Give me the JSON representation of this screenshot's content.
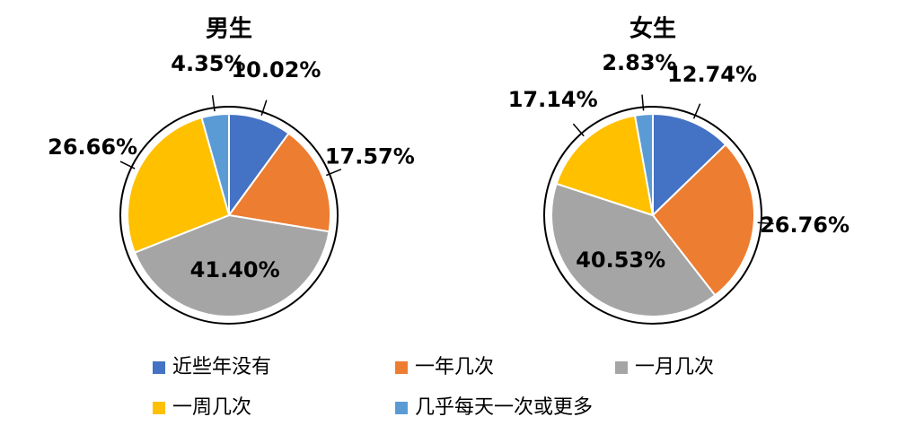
{
  "chart_data": [
    {
      "type": "pie",
      "title": "男生",
      "values": [
        10.02,
        17.57,
        41.4,
        26.66,
        4.35
      ],
      "value_labels": [
        "10.02%",
        "17.57%",
        "41.40%",
        "26.66%",
        "4.35%"
      ]
    },
    {
      "type": "pie",
      "title": "女生",
      "values": [
        12.74,
        26.76,
        40.53,
        17.14,
        2.83
      ],
      "value_labels": [
        "12.74%",
        "26.76%",
        "40.53%",
        "17.14%",
        "2.83%"
      ]
    }
  ],
  "legend": {
    "categories": [
      "近些年没有",
      "一年几次",
      "一月几次",
      "一周几次",
      "几乎每天一次或更多"
    ],
    "colors": [
      "#4472c4",
      "#ed7d31",
      "#a5a5a5",
      "#ffc000",
      "#5b9bd5"
    ]
  }
}
